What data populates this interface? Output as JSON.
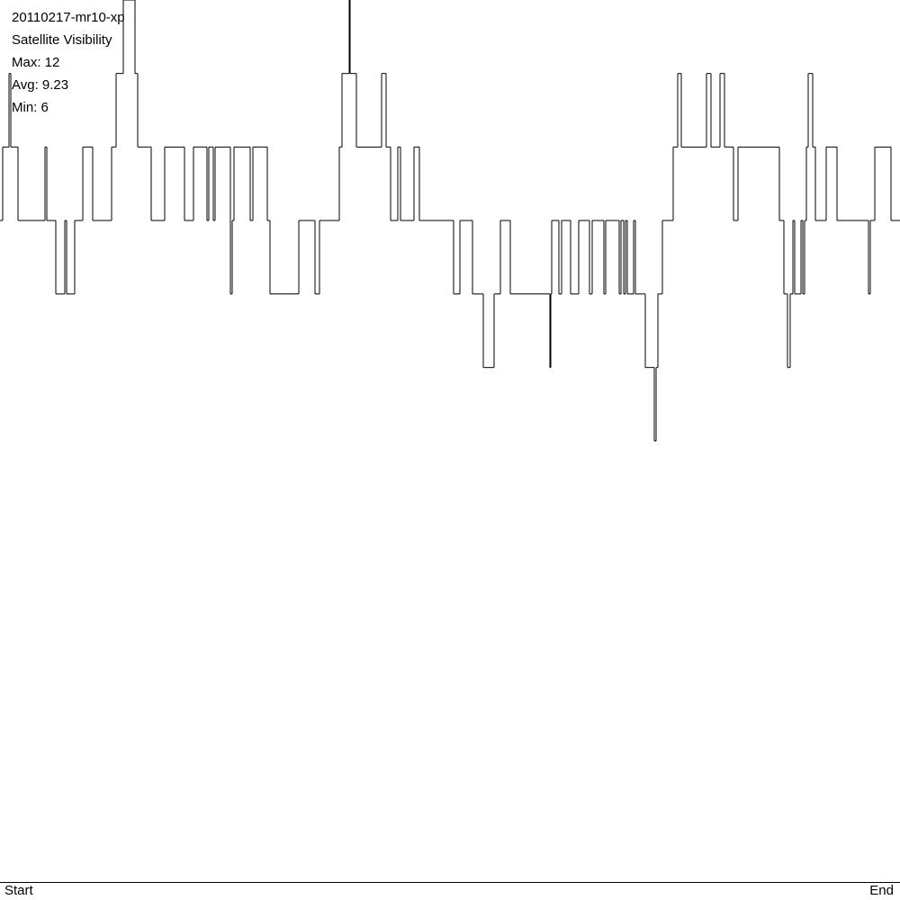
{
  "chart_data": {
    "type": "step",
    "title": "20110217-mr10-xp",
    "subtitle": "Satellite Visibility",
    "stats": [
      "Max: 12",
      "Avg: 9.23",
      "Min: 6"
    ],
    "x_labels": [
      "Start",
      "End"
    ],
    "color": "#000000",
    "xlim": [
      0,
      1000
    ],
    "ylim": [
      0,
      12
    ],
    "x": [
      0,
      3,
      10,
      12,
      20,
      50,
      52,
      62,
      72,
      74,
      83,
      92,
      103,
      124,
      129,
      137,
      150,
      153,
      168,
      183,
      205,
      215,
      230,
      232,
      237,
      239,
      256,
      258,
      260,
      278,
      281,
      297,
      300,
      332,
      350,
      355,
      377,
      380,
      388,
      389,
      396,
      424,
      429,
      434,
      442,
      445,
      460,
      466,
      504,
      511,
      525,
      537,
      549,
      556,
      567,
      611,
      612,
      613,
      621,
      624,
      634,
      643,
      655,
      658,
      671,
      673,
      688,
      690,
      693,
      695,
      697,
      704,
      706,
      717,
      727,
      729,
      731,
      736,
      748,
      753,
      757,
      785,
      790,
      800,
      805,
      815,
      820,
      866,
      871,
      875,
      878,
      881,
      883,
      890,
      892,
      894,
      896,
      898,
      903,
      906,
      918,
      930,
      965,
      967,
      972,
      990
    ],
    "values": [
      9,
      10,
      11,
      10,
      9,
      10,
      9,
      8,
      9,
      8,
      9,
      10,
      9,
      10,
      11,
      12,
      11,
      10,
      9,
      10,
      9,
      10,
      9,
      10,
      9,
      10,
      8,
      9,
      10,
      9,
      10,
      9,
      8,
      9,
      8,
      9,
      10,
      11,
      12,
      11,
      10,
      11,
      10,
      9,
      10,
      9,
      10,
      9,
      8,
      9,
      8,
      7,
      8,
      9,
      8,
      7,
      8,
      9,
      8,
      9,
      8,
      9,
      8,
      9,
      8,
      9,
      8,
      9,
      8,
      9,
      8,
      9,
      8,
      7,
      6,
      7,
      8,
      9,
      10,
      11,
      10,
      11,
      10,
      11,
      10,
      9,
      10,
      9,
      8,
      7,
      8,
      9,
      8,
      9,
      8,
      9,
      10,
      11,
      10,
      9,
      10,
      9,
      8,
      9,
      10,
      9
    ]
  }
}
